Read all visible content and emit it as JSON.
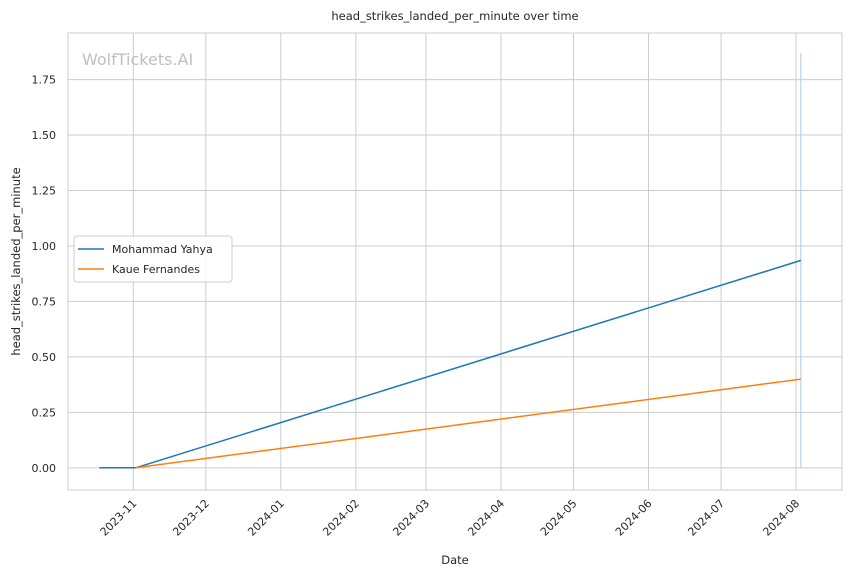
{
  "chart_data": {
    "type": "line",
    "title": "head_strikes_landed_per_minute over time",
    "xlabel": "Date",
    "ylabel": "head_strikes_landed_per_minute",
    "watermark": "WolfTickets.AI",
    "x_axis_type": "date",
    "xlim": [
      "2023-10-05",
      "2024-08-20"
    ],
    "ylim": [
      -0.1,
      1.96
    ],
    "x_ticks": [
      {
        "date": "2023-11-01",
        "label": "2023-11"
      },
      {
        "date": "2023-12-01",
        "label": "2023-12"
      },
      {
        "date": "2024-01-01",
        "label": "2024-01"
      },
      {
        "date": "2024-02-01",
        "label": "2024-02"
      },
      {
        "date": "2024-03-01",
        "label": "2024-03"
      },
      {
        "date": "2024-04-01",
        "label": "2024-04"
      },
      {
        "date": "2024-05-01",
        "label": "2024-05"
      },
      {
        "date": "2024-06-01",
        "label": "2024-06"
      },
      {
        "date": "2024-07-01",
        "label": "2024-07"
      },
      {
        "date": "2024-08-01",
        "label": "2024-08"
      }
    ],
    "y_ticks": [
      {
        "value": 0.0,
        "label": "0.00"
      },
      {
        "value": 0.25,
        "label": "0.25"
      },
      {
        "value": 0.5,
        "label": "0.50"
      },
      {
        "value": 0.75,
        "label": "0.75"
      },
      {
        "value": 1.0,
        "label": "1.00"
      },
      {
        "value": 1.25,
        "label": "1.25"
      },
      {
        "value": 1.5,
        "label": "1.50"
      },
      {
        "value": 1.75,
        "label": "1.75"
      }
    ],
    "grid": true,
    "legend_position": "center-left",
    "series": [
      {
        "name": "Mohammad Yahya",
        "color": "#1f77b4",
        "points": [
          {
            "x": "2023-10-18",
            "y": 0.0
          },
          {
            "x": "2023-11-02",
            "y": 0.0
          },
          {
            "x": "2024-08-03",
            "y": 0.935
          }
        ]
      },
      {
        "name": "Kaue Fernandes",
        "color": "#ff7f0e",
        "points": [
          {
            "x": "2023-11-02",
            "y": 0.0
          },
          {
            "x": "2024-08-03",
            "y": 0.4
          }
        ]
      }
    ],
    "marker_line": {
      "x": "2024-08-03",
      "y_from": 0.0,
      "y_to": 1.87,
      "color": "#aec7e8"
    }
  }
}
